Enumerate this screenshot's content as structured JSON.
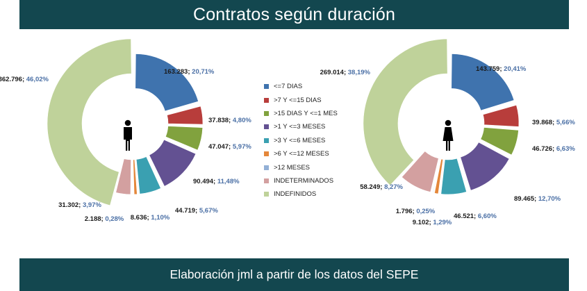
{
  "header": {
    "title": "Contratos según duración"
  },
  "footer": {
    "text": "Elaboración jml a partir de los datos del SEPE"
  },
  "colors": {
    "banner": "#13474f",
    "percent_text": "#4a6fa5"
  },
  "chart_data": [
    {
      "type": "pie",
      "variant": "exploded-half-donut",
      "title": "",
      "icon": "male-person-icon",
      "legend_placement": "center",
      "categories": [
        "<=7 DIAS",
        ">7 Y <=15 DIAS",
        ">15 DIAS Y <=1 MES",
        ">1 Y <=3 MESES",
        ">3 Y <=6 MESES",
        ">6 Y <=12 MESES",
        ">12 MESES",
        "INDETERMINADOS",
        "INDEFINIDOS"
      ],
      "colors": [
        "#3f73ae",
        "#b83d3b",
        "#81a23e",
        "#635192",
        "#3aa0b1",
        "#e4873a",
        "#93b0d6",
        "#d3a0a0",
        "#bfd29a"
      ],
      "values": [
        163283,
        37838,
        47047,
        90494,
        44719,
        8636,
        2188,
        31302,
        362796
      ],
      "count_labels": [
        "163.283",
        "37.838",
        "47.047",
        "90.494",
        "44.719",
        "8.636",
        "2.188",
        "31.302",
        "362.796"
      ],
      "percent_labels": [
        "20,71%",
        "4,80%",
        "5,97%",
        "11,48%",
        "5,67%",
        "1,10%",
        "0,28%",
        "3,97%",
        "46,02%"
      ]
    },
    {
      "type": "pie",
      "variant": "exploded-half-donut",
      "title": "",
      "icon": "female-person-icon",
      "legend_placement": "center",
      "categories": [
        "<=7 DIAS",
        ">7 Y <=15 DIAS",
        ">15 DIAS Y <=1 MES",
        ">1 Y <=3 MESES",
        ">3 Y <=6 MESES",
        ">6 Y <=12 MESES",
        ">12 MESES",
        "INDETERMINADOS",
        "INDEFINIDOS"
      ],
      "colors": [
        "#3f73ae",
        "#b83d3b",
        "#81a23e",
        "#635192",
        "#3aa0b1",
        "#e4873a",
        "#93b0d6",
        "#d3a0a0",
        "#bfd29a"
      ],
      "values": [
        143759,
        39868,
        46726,
        89465,
        46521,
        9102,
        1796,
        58249,
        269014
      ],
      "count_labels": [
        "143.759",
        "39.868",
        "46.726",
        "89.465",
        "46.521",
        "9.102",
        "1.796",
        "58.249",
        "269.014"
      ],
      "percent_labels": [
        "20,41%",
        "5,66%",
        "6,63%",
        "12,70%",
        "6,60%",
        "1,29%",
        "0,25%",
        "8,27%",
        "38,19%"
      ]
    }
  ]
}
